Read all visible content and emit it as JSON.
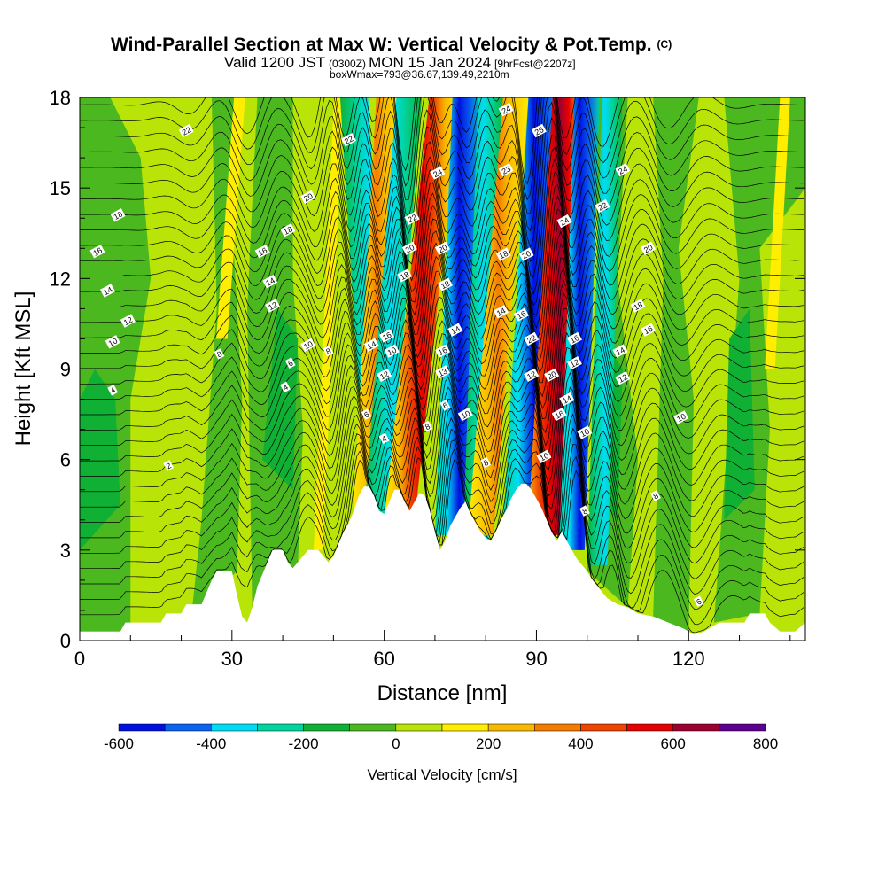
{
  "title": {
    "main": "Wind-Parallel Section at Max W: Vertical Velocity & Pot.Temp.",
    "mark": "(C)",
    "line2_a": "Valid 1200 JST",
    "line2_b": "(0300Z)",
    "line2_c": "MON 15 Jan 2024",
    "line2_d": "[9hrFcst@2207z]",
    "line3": "boxWmax=793@36.67,139.49,2210m"
  },
  "chart_data": {
    "type": "heatmap",
    "xlabel": "Distance [nm]",
    "ylabel": "Height [Kft MSL]",
    "xlim": [
      0,
      143
    ],
    "ylim": [
      0,
      18
    ],
    "xticks": [
      0,
      30,
      60,
      90,
      120
    ],
    "yticks": [
      0,
      3,
      6,
      9,
      12,
      15,
      18
    ],
    "colorbar": {
      "label": "Vertical Velocity [cm/s]",
      "levels": [
        -600,
        -500,
        -400,
        -300,
        -200,
        -100,
        0,
        100,
        200,
        300,
        400,
        500,
        600,
        700,
        800
      ],
      "tick_labels": [
        -600,
        -400,
        -200,
        0,
        200,
        400,
        600,
        800
      ],
      "colors": [
        "#0010e0",
        "#0a64f0",
        "#00dcf4",
        "#00d4a0",
        "#10b034",
        "#4cb820",
        "#b8e408",
        "#ffee00",
        "#f8b800",
        "#f47c00",
        "#ee4400",
        "#e60000",
        "#9c0030",
        "#5c0090"
      ]
    },
    "terrain": [
      [
        0,
        0.3
      ],
      [
        8,
        0.3
      ],
      [
        9,
        0.6
      ],
      [
        16,
        0.6
      ],
      [
        17,
        0.9
      ],
      [
        20,
        0.9
      ],
      [
        21,
        1.2
      ],
      [
        24,
        1.2
      ],
      [
        25,
        1.6
      ],
      [
        26,
        2.0
      ],
      [
        27,
        2.3
      ],
      [
        30,
        2.3
      ],
      [
        31,
        1.5
      ],
      [
        32,
        0.8
      ],
      [
        33,
        0.6
      ],
      [
        34,
        1.1
      ],
      [
        35,
        1.8
      ],
      [
        36,
        2.2
      ],
      [
        37,
        2.6
      ],
      [
        38,
        3.0
      ],
      [
        40,
        3.0
      ],
      [
        41,
        2.6
      ],
      [
        42,
        2.4
      ],
      [
        43,
        2.6
      ],
      [
        44,
        2.8
      ],
      [
        45,
        3.0
      ],
      [
        47,
        3.0
      ],
      [
        48,
        2.8
      ],
      [
        49,
        2.6
      ],
      [
        50,
        2.8
      ],
      [
        51,
        3.2
      ],
      [
        52,
        3.6
      ],
      [
        53,
        3.9
      ],
      [
        54,
        4.3
      ],
      [
        55,
        4.8
      ],
      [
        56,
        5.1
      ],
      [
        57,
        5.1
      ],
      [
        58,
        4.8
      ],
      [
        59,
        4.3
      ],
      [
        60,
        4.2
      ],
      [
        61,
        4.6
      ],
      [
        62,
        5.0
      ],
      [
        63,
        5.0
      ],
      [
        64,
        4.6
      ],
      [
        65,
        4.3
      ],
      [
        66,
        4.6
      ],
      [
        67,
        4.9
      ],
      [
        68,
        4.8
      ],
      [
        69,
        4.3
      ],
      [
        70,
        3.6
      ],
      [
        71,
        3.0
      ],
      [
        72,
        3.3
      ],
      [
        73,
        3.8
      ],
      [
        74,
        4.1
      ],
      [
        75,
        4.4
      ],
      [
        76,
        4.6
      ],
      [
        77,
        4.2
      ],
      [
        78,
        3.9
      ],
      [
        79,
        3.6
      ],
      [
        80,
        3.4
      ],
      [
        81,
        3.3
      ],
      [
        82,
        3.6
      ],
      [
        83,
        4.0
      ],
      [
        84,
        4.3
      ],
      [
        85,
        4.7
      ],
      [
        86,
        5.0
      ],
      [
        87,
        5.2
      ],
      [
        88,
        5.2
      ],
      [
        89,
        5.0
      ],
      [
        90,
        4.7
      ],
      [
        91,
        4.4
      ],
      [
        92,
        4.0
      ],
      [
        93,
        3.6
      ],
      [
        94,
        3.3
      ],
      [
        95,
        3.6
      ],
      [
        96,
        3.3
      ],
      [
        97,
        3.0
      ],
      [
        98,
        2.7
      ],
      [
        99,
        2.5
      ],
      [
        100,
        2.3
      ],
      [
        101,
        2.0
      ],
      [
        102,
        1.8
      ],
      [
        103,
        1.6
      ],
      [
        104,
        1.4
      ],
      [
        105,
        1.3
      ],
      [
        106,
        1.2
      ],
      [
        108,
        1.1
      ],
      [
        110,
        0.9
      ],
      [
        113,
        0.8
      ],
      [
        116,
        0.6
      ],
      [
        119,
        0.4
      ],
      [
        121,
        0.2
      ],
      [
        123,
        0.3
      ],
      [
        126,
        0.6
      ],
      [
        131,
        0.6
      ],
      [
        132,
        0.9
      ],
      [
        135,
        0.9
      ],
      [
        136,
        0.6
      ],
      [
        138,
        0.3
      ],
      [
        141,
        0.3
      ],
      [
        143,
        0.6
      ]
    ],
    "isentrope_labels": [
      {
        "x": 21,
        "y": 16.9,
        "text": "22"
      },
      {
        "x": 7.5,
        "y": 14.1,
        "text": "18"
      },
      {
        "x": 3.5,
        "y": 12.9,
        "text": "16"
      },
      {
        "x": 5.5,
        "y": 11.6,
        "text": "14"
      },
      {
        "x": 9.5,
        "y": 10.6,
        "text": "12"
      },
      {
        "x": 6.5,
        "y": 9.9,
        "text": "10"
      },
      {
        "x": 6.5,
        "y": 8.3,
        "text": "4"
      },
      {
        "x": 27.5,
        "y": 9.5,
        "text": "8"
      },
      {
        "x": 17.5,
        "y": 5.8,
        "text": "2"
      },
      {
        "x": 45,
        "y": 14.7,
        "text": "20"
      },
      {
        "x": 41,
        "y": 13.6,
        "text": "18"
      },
      {
        "x": 36,
        "y": 12.9,
        "text": "16"
      },
      {
        "x": 37.5,
        "y": 11.9,
        "text": "14"
      },
      {
        "x": 38,
        "y": 11.1,
        "text": "12"
      },
      {
        "x": 45,
        "y": 9.8,
        "text": "10"
      },
      {
        "x": 49,
        "y": 9.6,
        "text": "8"
      },
      {
        "x": 41.5,
        "y": 9.2,
        "text": "6"
      },
      {
        "x": 40.5,
        "y": 8.4,
        "text": "4"
      },
      {
        "x": 53,
        "y": 16.6,
        "text": "22"
      },
      {
        "x": 57.5,
        "y": 9.8,
        "text": "14"
      },
      {
        "x": 56.5,
        "y": 7.5,
        "text": "6"
      },
      {
        "x": 60,
        "y": 6.7,
        "text": "4"
      },
      {
        "x": 60.5,
        "y": 10.1,
        "text": "16"
      },
      {
        "x": 61.5,
        "y": 9.6,
        "text": "10"
      },
      {
        "x": 60,
        "y": 8.8,
        "text": "12"
      },
      {
        "x": 65.5,
        "y": 14.0,
        "text": "22"
      },
      {
        "x": 65,
        "y": 13.0,
        "text": "20"
      },
      {
        "x": 64,
        "y": 12.1,
        "text": "18"
      },
      {
        "x": 70.5,
        "y": 15.5,
        "text": "24"
      },
      {
        "x": 71.5,
        "y": 13.0,
        "text": "20"
      },
      {
        "x": 72,
        "y": 11.8,
        "text": "18"
      },
      {
        "x": 74,
        "y": 10.3,
        "text": "14"
      },
      {
        "x": 71.5,
        "y": 9.6,
        "text": "16"
      },
      {
        "x": 71.5,
        "y": 8.9,
        "text": "13"
      },
      {
        "x": 72,
        "y": 7.8,
        "text": "6"
      },
      {
        "x": 68.5,
        "y": 7.1,
        "text": "8"
      },
      {
        "x": 76,
        "y": 7.5,
        "text": "10"
      },
      {
        "x": 80,
        "y": 5.9,
        "text": "8"
      },
      {
        "x": 84,
        "y": 17.6,
        "text": "24"
      },
      {
        "x": 84,
        "y": 15.6,
        "text": "23"
      },
      {
        "x": 83.5,
        "y": 12.8,
        "text": "18"
      },
      {
        "x": 88,
        "y": 12.8,
        "text": "20"
      },
      {
        "x": 83,
        "y": 10.9,
        "text": "14"
      },
      {
        "x": 87,
        "y": 10.8,
        "text": "16"
      },
      {
        "x": 89,
        "y": 10.0,
        "text": "22"
      },
      {
        "x": 89,
        "y": 8.8,
        "text": "12"
      },
      {
        "x": 93,
        "y": 8.8,
        "text": "20"
      },
      {
        "x": 91.5,
        "y": 6.1,
        "text": "10"
      },
      {
        "x": 90.5,
        "y": 16.9,
        "text": "26"
      },
      {
        "x": 95.5,
        "y": 13.9,
        "text": "24"
      },
      {
        "x": 97.5,
        "y": 10.0,
        "text": "16"
      },
      {
        "x": 97.5,
        "y": 9.2,
        "text": "12"
      },
      {
        "x": 96,
        "y": 8.0,
        "text": "14"
      },
      {
        "x": 94.5,
        "y": 7.5,
        "text": "16"
      },
      {
        "x": 99.5,
        "y": 6.9,
        "text": "10"
      },
      {
        "x": 99.5,
        "y": 4.3,
        "text": "8"
      },
      {
        "x": 103,
        "y": 14.4,
        "text": "22"
      },
      {
        "x": 107,
        "y": 15.6,
        "text": "24"
      },
      {
        "x": 112,
        "y": 13.0,
        "text": "20"
      },
      {
        "x": 110,
        "y": 11.1,
        "text": "18"
      },
      {
        "x": 112,
        "y": 10.3,
        "text": "16"
      },
      {
        "x": 106.5,
        "y": 9.6,
        "text": "14"
      },
      {
        "x": 107,
        "y": 8.7,
        "text": "12"
      },
      {
        "x": 118.5,
        "y": 7.4,
        "text": "10"
      },
      {
        "x": 113.5,
        "y": 4.8,
        "text": "8"
      },
      {
        "x": 122,
        "y": 1.3,
        "text": "6"
      }
    ]
  }
}
